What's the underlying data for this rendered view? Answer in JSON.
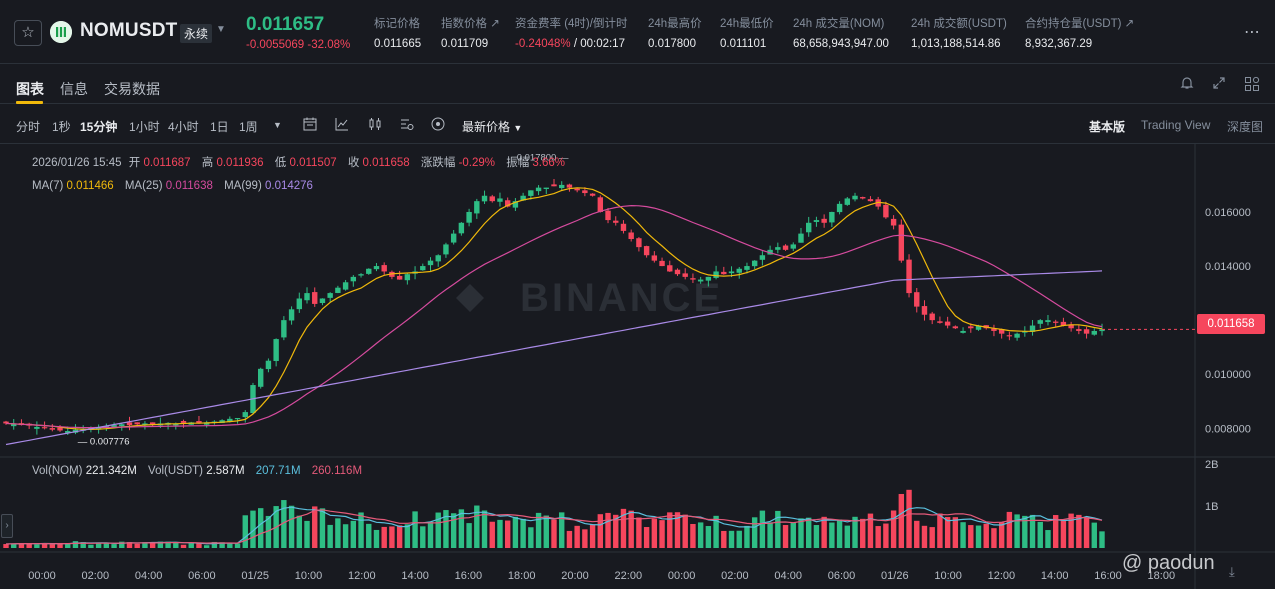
{
  "header": {
    "symbol": "NOMUSDT",
    "contract_type": "永续",
    "last_price": "0.011657",
    "change": "-0.0055069 -32.08%",
    "stats": [
      {
        "label": "标记价格",
        "value": "0.011665"
      },
      {
        "label": "指数价格 ↗",
        "value": "0.011709"
      },
      {
        "label": "资金费率 (4时)/倒计时",
        "value_red": "-0.24048%",
        "value_rest": " / 00:02:17"
      },
      {
        "label": "24h最高价",
        "value": "0.017800"
      },
      {
        "label": "24h最低价",
        "value": "0.011101"
      },
      {
        "label": "24h 成交量(NOM)",
        "value": "68,658,943,947.00"
      },
      {
        "label": "24h 成交额(USDT)",
        "value": "1,013,188,514.86"
      },
      {
        "label": "合约持仓量(USDT) ↗",
        "value": "8,932,367.29"
      }
    ],
    "more_icon": "ellipsis-icon"
  },
  "tabs": [
    "图表",
    "信息",
    "交易数据"
  ],
  "toolbar": {
    "timeframes": [
      "分时",
      "1秒",
      "15分钟",
      "1小时",
      "4小时",
      "1日",
      "1周"
    ],
    "active_timeframe": "15分钟",
    "price_type": "最新价格",
    "views": [
      "基本版",
      "Trading View",
      "深度图"
    ],
    "active_view": "基本版"
  },
  "chart_info": {
    "ohlc_row": {
      "date": "2026/01/26 15:45",
      "open_label": "开",
      "open": "0.011687",
      "high_label": "高",
      "high": "0.011936",
      "low_label": "低",
      "low": "0.011507",
      "close_label": "收",
      "close": "0.011658",
      "chg_label": "涨跌幅",
      "chg": "-0.29%",
      "amp_label": "振幅",
      "amp": "3.66%"
    },
    "ma_row": {
      "ma7_label": "MA(7)",
      "ma7": "0.011466",
      "ma25_label": "MA(25)",
      "ma25": "0.011638",
      "ma99_label": "MA(99)",
      "ma99": "0.014276"
    },
    "vol_row": {
      "vol_nom_label": "Vol(NOM)",
      "vol_nom": "221.342M",
      "vol_usdt_label": "Vol(USDT)",
      "vol_usdt": "2.587M",
      "ma1": "207.71M",
      "ma2": "260.116M"
    },
    "current_price_tag": "0.011658",
    "watermark": "@ paodun",
    "colors": {
      "up": "#2ebd85",
      "down": "#f6465d",
      "ma7": "#f0b90b",
      "ma25": "#d54b9e",
      "ma99": "#a98ae7",
      "vol_ma1": "#5bc0de",
      "vol_ma2": "#e55a7a"
    }
  },
  "chart_data": {
    "type": "line",
    "title": "",
    "ylabel": "",
    "xlabel": "",
    "y_ticks": [
      "0.016000",
      "0.014000",
      "0.012000",
      "0.010000",
      "0.008000"
    ],
    "ylim": [
      0.00705,
      0.0177
    ],
    "x_ticks": [
      "00:00",
      "02:00",
      "04:00",
      "06:00",
      "01/25",
      "10:00",
      "12:00",
      "14:00",
      "16:00",
      "18:00",
      "20:00",
      "22:00",
      "00:00",
      "02:00",
      "04:00",
      "06:00",
      "01/26",
      "10:00",
      "12:00",
      "14:00",
      "16:00",
      "18:00"
    ],
    "high_marker": "0.017800",
    "low_marker": "0.007776",
    "vol_ticks": [
      "2B",
      "1B"
    ],
    "vol_ylim": [
      0,
      2050000000
    ],
    "series": [
      {
        "name": "MA(7)"
      },
      {
        "name": "MA(25)"
      },
      {
        "name": "MA(99)"
      }
    ],
    "closes": [
      0.00818,
      0.00815,
      0.00812,
      0.0081,
      0.00805,
      0.008,
      0.00795,
      0.00792,
      0.0079,
      0.00795,
      0.00798,
      0.00802,
      0.00805,
      0.00808,
      0.00812,
      0.00815,
      0.00812,
      0.00815,
      0.00818,
      0.00815,
      0.00818,
      0.0082,
      0.00818,
      0.0082,
      0.00822,
      0.0082,
      0.00822,
      0.00825,
      0.0083,
      0.00835,
      0.00838,
      0.0086,
      0.0096,
      0.0102,
      0.0105,
      0.0113,
      0.012,
      0.0124,
      0.0128,
      0.013,
      0.0126,
      0.0128,
      0.013,
      0.0132,
      0.0134,
      0.0136,
      0.0137,
      0.0139,
      0.014,
      0.0138,
      0.0136,
      0.0135,
      0.0137,
      0.0138,
      0.014,
      0.0142,
      0.0144,
      0.0148,
      0.0152,
      0.0156,
      0.016,
      0.0164,
      0.0166,
      0.0164,
      0.0165,
      0.0162,
      0.0164,
      0.0166,
      0.0168,
      0.0169,
      0.0169,
      0.01695,
      0.017,
      0.0169,
      0.0168,
      0.0167,
      0.0166,
      0.016,
      0.0157,
      0.0156,
      0.0153,
      0.015,
      0.0147,
      0.0144,
      0.0142,
      0.014,
      0.0138,
      0.0137,
      0.0136,
      0.0135,
      0.0135,
      0.0136,
      0.0138,
      0.0137,
      0.0138,
      0.0139,
      0.014,
      0.0142,
      0.0144,
      0.0146,
      0.0147,
      0.0146,
      0.0148,
      0.0152,
      0.0156,
      0.0157,
      0.0156,
      0.016,
      0.0163,
      0.0165,
      0.0166,
      0.0165,
      0.0164,
      0.0162,
      0.0158,
      0.0155,
      0.0142,
      0.013,
      0.0125,
      0.0122,
      0.012,
      0.0119,
      0.0118,
      0.0117,
      0.0116,
      0.0117,
      0.0118,
      0.0117,
      0.0116,
      0.0115,
      0.0114,
      0.0115,
      0.0116,
      0.0118,
      0.012,
      0.012,
      0.0119,
      0.0118,
      0.0117,
      0.0116,
      0.0115,
      0.0116,
      0.01166
    ],
    "x_start_label": "01/24 00:00",
    "x_step_minutes": 15
  }
}
